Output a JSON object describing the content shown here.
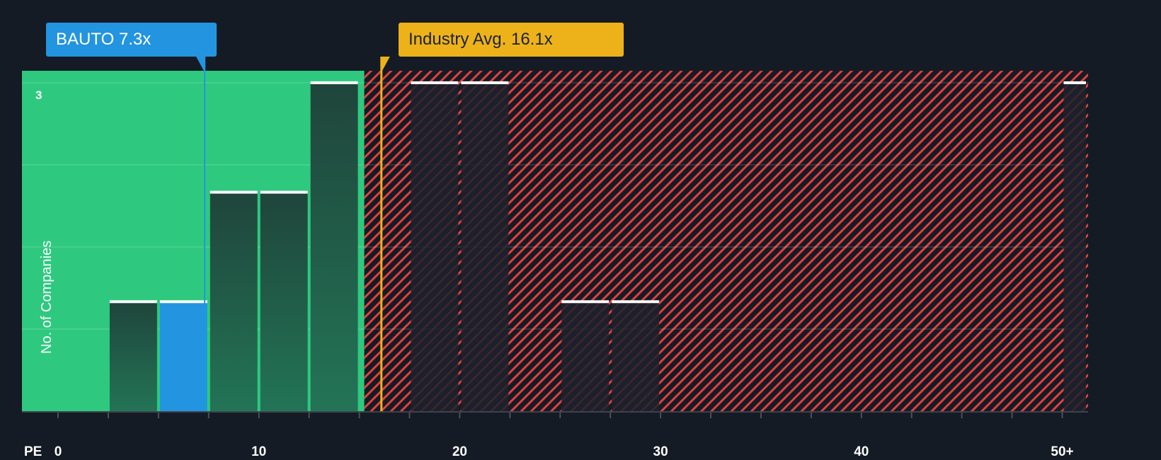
{
  "callouts": {
    "company": {
      "label": "BAUTO 7.3x",
      "value": 7.3,
      "color": "#2394e0"
    },
    "industry": {
      "label": "Industry Avg. 16.1x",
      "value": 16.1,
      "color": "#edb21a"
    }
  },
  "axes": {
    "x_name": "PE",
    "y_label": "No. of Companies",
    "y_tick_label": "3",
    "x_ticks": [
      {
        "label": "0",
        "value": 0
      },
      {
        "label": "10",
        "value": 10
      },
      {
        "label": "20",
        "value": 20
      },
      {
        "label": "30",
        "value": 30
      },
      {
        "label": "40",
        "value": 40
      },
      {
        "label": "50+",
        "value": 50
      }
    ]
  },
  "colors": {
    "background": "#151b24",
    "undervalued_zone": "#2ec97f",
    "overvalued_hatch": "#e0403f",
    "bar_green_zone": "#21503f",
    "bar_highlight": "#2394e0",
    "bar_red_zone": "#1c212b",
    "bar_cap": "#ffffff"
  },
  "chart_data": {
    "type": "bar",
    "title": "",
    "xlabel": "PE",
    "ylabel": "No. of Companies",
    "bin_width": 2.5,
    "categories": [
      "2.5-5",
      "5-7.5",
      "7.5-10",
      "10-12.5",
      "12.5-15",
      "17.5-20",
      "20-22.5",
      "25-27.5",
      "27.5-30",
      "50+"
    ],
    "bins": [
      {
        "from": 2.5,
        "to": 5,
        "count": 1,
        "highlight": false
      },
      {
        "from": 5,
        "to": 7.5,
        "count": 1,
        "highlight": true
      },
      {
        "from": 7.5,
        "to": 10,
        "count": 2,
        "highlight": false
      },
      {
        "from": 10,
        "to": 12.5,
        "count": 2,
        "highlight": false
      },
      {
        "from": 12.5,
        "to": 15,
        "count": 3,
        "highlight": false
      },
      {
        "from": 17.5,
        "to": 20,
        "count": 3,
        "highlight": false
      },
      {
        "from": 20,
        "to": 22.5,
        "count": 3,
        "highlight": false
      },
      {
        "from": 25,
        "to": 27.5,
        "count": 1,
        "highlight": false
      },
      {
        "from": 27.5,
        "to": 30,
        "count": 1,
        "highlight": false
      },
      {
        "from": 50,
        "to": 51.25,
        "count": 3,
        "highlight": false
      }
    ],
    "values": [
      1,
      1,
      2,
      2,
      3,
      3,
      3,
      1,
      1,
      3
    ],
    "company_value": 7.3,
    "industry_average": 16.1,
    "undervalued_zone_max": 15.25,
    "x_ticks": [
      0,
      10,
      20,
      30,
      40,
      "50+"
    ],
    "y_ticks": [
      3
    ],
    "xlim": [
      -1.8,
      51.25
    ],
    "ylim": [
      0,
      3.1
    ],
    "grid": true,
    "legend": "none"
  }
}
